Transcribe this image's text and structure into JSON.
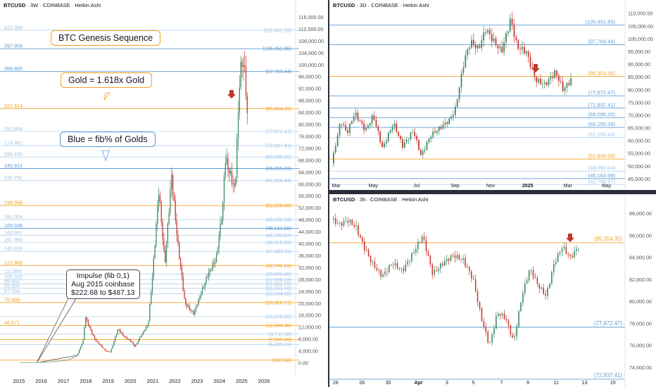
{
  "colors": {
    "orange": "#f5a020",
    "blue": "#5b9bd5",
    "light_blue": "#9cc2e6",
    "up": "#3d8a63",
    "down": "#c73a30",
    "arrow": "#c0392b",
    "axis_text": "#555555"
  },
  "left_panel": {
    "title_symbol": "BTCUSD",
    "title_rest": " · 3W · COINBASE · Heikin Ashi",
    "callout_genesis": "BTC Genesis Sequence",
    "callout_gold": "Gold = 1.618x Gold",
    "callout_blue": "Blue = fib% of Golds",
    "note_lines": [
      "Impulse (fib 0,1)",
      "Aug 2015 coinbase",
      "$222.68 to $487.13"
    ],
    "arrow_icon": "down-arrow-icon"
  },
  "top_right_panel": {
    "title_symbol": "BTCUSD",
    "title_rest": " · 3D · COINBASE · Heikin Ashi",
    "arrow_icon": "down-arrow-icon"
  },
  "bottom_right_panel": {
    "title_symbol": "BTCUSD",
    "title_rest": " · 3h · COINBASE · Heikin Ashi",
    "arrow_icon": "down-arrow-icon"
  },
  "chart_data": [
    {
      "type": "candlestick",
      "symbol": "BTCUSD",
      "timeframe": "3W",
      "exchange": "COINBASE",
      "style": "Heikin Ashi",
      "x_ticks": [
        "2015",
        "2016",
        "2017",
        "2018",
        "2019",
        "2020",
        "2021",
        "2022",
        "2023",
        "2024",
        "2025",
        "2026"
      ],
      "y_ticks": [
        "116,000.00",
        "112,000.00",
        "108,000.00",
        "104,000.00",
        "100,000.00",
        "96,000.00",
        "92,000.00",
        "88,000.00",
        "84,000.00",
        "80,000.00",
        "76,000.00",
        "72,000.00",
        "68,000.00",
        "64,000.00",
        "60,000.00",
        "56,000.00",
        "52,000.00",
        "48,000.00",
        "44,000.00",
        "40,000.00",
        "36,000.00",
        "32,000.00",
        "28,000.00",
        "24,000.00",
        "20,000.00",
        "16,000.00",
        "12,000.00",
        "8,000.00",
        "4,000.00",
        "0.00"
      ],
      "ylim": [
        0,
        118000
      ],
      "price_path": [
        [
          2015.0,
          230
        ],
        [
          2015.6,
          260
        ],
        [
          2016.2,
          420
        ],
        [
          2016.8,
          700
        ],
        [
          2017.2,
          1100
        ],
        [
          2017.6,
          2500
        ],
        [
          2017.9,
          8000
        ],
        [
          2017.97,
          16000
        ],
        [
          2018.1,
          13000
        ],
        [
          2018.4,
          8000
        ],
        [
          2018.9,
          4000
        ],
        [
          2019.1,
          3700
        ],
        [
          2019.45,
          11500
        ],
        [
          2019.7,
          9000
        ],
        [
          2020.0,
          7500
        ],
        [
          2020.2,
          5500
        ],
        [
          2020.5,
          9500
        ],
        [
          2020.8,
          13000
        ],
        [
          2021.0,
          30000
        ],
        [
          2021.28,
          58000
        ],
        [
          2021.55,
          33000
        ],
        [
          2021.85,
          63000
        ],
        [
          2022.1,
          42000
        ],
        [
          2022.45,
          20000
        ],
        [
          2022.85,
          16500
        ],
        [
          2023.1,
          22000
        ],
        [
          2023.5,
          30000
        ],
        [
          2023.85,
          35000
        ],
        [
          2024.15,
          52000
        ],
        [
          2024.25,
          69000
        ],
        [
          2024.7,
          58000
        ],
        [
          2024.92,
          97000
        ],
        [
          2025.05,
          102000
        ],
        [
          2025.17,
          95000
        ],
        [
          2025.25,
          83000
        ]
      ],
      "fib_levels": [
        {
          "left": "421.386",
          "right": "(111,661.25)",
          "value": 111661.25,
          "kind": "light"
        },
        {
          "left": "397.909",
          "right": "(105,451.85)",
          "value": 105451.85,
          "kind": "blue"
        },
        {
          "left": "368.865",
          "right": "(97,769.44)",
          "value": 97769.44,
          "kind": "blue"
        },
        {
          "left": "321.914",
          "right": "(85,354.35)",
          "value": 85354.35,
          "kind": "orange"
        },
        {
          "left": "292.866",
          "right": "(77,672.47)",
          "value": 77672.47,
          "kind": "light"
        },
        {
          "left": "274.961",
          "right": "(72,937.41)",
          "value": 72937.41,
          "kind": "light"
        },
        {
          "left": "260.436",
          "right": "(69,096.20)",
          "value": 69096.2,
          "kind": "light"
        },
        {
          "left": "245.912",
          "right": "(65,255.26)",
          "value": 65255.26,
          "kind": "blue"
        },
        {
          "left": "230.791",
          "right": "(61,256.44)",
          "value": 61256.44,
          "kind": "light"
        },
        {
          "left": "198.958",
          "right": "(52,838.06)",
          "value": 52838.06,
          "kind": "orange"
        },
        {
          "left": "181.004",
          "right": "(48,090.04)",
          "value": 48090.04,
          "kind": "light"
        },
        {
          "left": "169.938",
          "right": "(45,163.58)",
          "value": 45163.58,
          "kind": "blue"
        },
        {
          "left": "160.961",
          "right": "(42,789.57)",
          "value": 42789.57,
          "kind": "light"
        },
        {
          "left": "151.985",
          "right": "(40,415.83)",
          "value": 40415.83,
          "kind": "light"
        },
        {
          "left": "140.918",
          "right": "(37,489.11)",
          "value": 37489.11,
          "kind": "light"
        },
        {
          "left": "122.965",
          "right": "(32,741.15)",
          "value": 32741.15,
          "kind": "orange"
        },
        {
          "left": "111.869",
          "right": "(29,806.96)",
          "value": 29806.96,
          "kind": "light"
        },
        {
          "left": "105.029",
          "right": "(27,998.23)",
          "value": 27998.23,
          "kind": "light"
        },
        {
          "left": "99.482",
          "right": "(26,531.76)",
          "value": 26531.76,
          "kind": "light"
        },
        {
          "left": "93.933",
          "right": "(25,063.70)",
          "value": 25063.7,
          "kind": "light"
        },
        {
          "left": "87.094",
          "right": "(23,254.96)",
          "value": 23254.96,
          "kind": "light"
        },
        {
          "left": "75.998",
          "right": "(20,320.71)",
          "value": 20320.71,
          "kind": "orange"
        },
        {
          "left": "",
          "right": "(15,575.60)",
          "value": 15575.6,
          "kind": "light"
        },
        {
          "left": "46.971",
          "right": "(12,644.38)",
          "value": 12644.38,
          "kind": "orange"
        },
        {
          "left": "",
          "right": "(9,711.58)",
          "value": 9711.58,
          "kind": "light"
        },
        {
          "left": "",
          "right": "(7,900.06)",
          "value": 7900.06,
          "kind": "orange"
        },
        {
          "left": "",
          "right": "(6,289.19)",
          "value": 6289.19,
          "kind": "light"
        },
        {
          "left": "",
          "right": "(987.68)",
          "value": 987.68,
          "kind": "orange"
        }
      ]
    },
    {
      "type": "candlestick",
      "symbol": "BTCUSD",
      "timeframe": "3D",
      "exchange": "COINBASE",
      "style": "Heikin Ashi",
      "x_ticks": [
        "Mar",
        "May",
        "Jul",
        "Sep",
        "Nov",
        "2025",
        "Mar",
        "May"
      ],
      "y_ticks": [
        "110,000.00",
        "105,000.00",
        "100,000.00",
        "95,000.00",
        "90,000.00",
        "85,000.00",
        "80,000.00",
        "75,000.00",
        "70,000.00",
        "65,000.00",
        "60,000.00",
        "55,000.00",
        "50,000.00",
        "45,000.00"
      ],
      "ylim": [
        44000,
        112000
      ],
      "price_path": [
        [
          0.0,
          51000
        ],
        [
          0.06,
          68000
        ],
        [
          0.1,
          63000
        ],
        [
          0.15,
          71000
        ],
        [
          0.22,
          64000
        ],
        [
          0.27,
          70000
        ],
        [
          0.33,
          57000
        ],
        [
          0.4,
          67000
        ],
        [
          0.46,
          58000
        ],
        [
          0.53,
          64000
        ],
        [
          0.58,
          54000
        ],
        [
          0.64,
          62000
        ],
        [
          0.7,
          65000
        ],
        [
          0.76,
          68000
        ],
        [
          0.8,
          72000
        ],
        [
          0.86,
          92000
        ],
        [
          0.9,
          99000
        ],
        [
          0.95,
          96000
        ],
        [
          1.0,
          104000
        ],
        [
          1.04,
          100000
        ],
        [
          1.1,
          95000
        ],
        [
          1.16,
          108000
        ],
        [
          1.2,
          97000
        ],
        [
          1.26,
          95000
        ],
        [
          1.32,
          84000
        ],
        [
          1.38,
          82000
        ],
        [
          1.45,
          87000
        ],
        [
          1.5,
          80000
        ],
        [
          1.55,
          84000
        ]
      ],
      "x_domain": [
        0,
        1.9
      ],
      "fib_levels": [
        {
          "right": "(105,451.85)",
          "value": 105451.85,
          "kind": "blue"
        },
        {
          "right": "(97,769.44)",
          "value": 97769.44,
          "kind": "blue"
        },
        {
          "right": "(85,354.35)",
          "value": 85354.35,
          "kind": "orange"
        },
        {
          "right": "(77,672.47)",
          "value": 77672.47,
          "kind": "blue"
        },
        {
          "right": "(72,937.41)",
          "value": 72937.41,
          "kind": "blue"
        },
        {
          "right": "(69,096.20)",
          "value": 69096.2,
          "kind": "blue"
        },
        {
          "right": "(65,255.26)",
          "value": 65255.26,
          "kind": "blue"
        },
        {
          "right": "(61,256.44)",
          "value": 61256.44,
          "kind": "light"
        },
        {
          "right": "(52,838.06)",
          "value": 52838.06,
          "kind": "orange"
        },
        {
          "right": "(48,090.04)",
          "value": 48090.04,
          "kind": "light"
        },
        {
          "right": "(45,163.58)",
          "value": 45163.58,
          "kind": "blue"
        },
        {
          "right": "(42,789.57)",
          "value": 42789.57,
          "kind": "light"
        }
      ]
    },
    {
      "type": "candlestick",
      "symbol": "BTCUSD",
      "timeframe": "3h",
      "exchange": "COINBASE",
      "style": "Heikin Ashi",
      "x_ticks": [
        "26",
        "28",
        "30",
        "Apr",
        "3",
        "5",
        "7",
        "9",
        "11",
        "13",
        "15"
      ],
      "y_ticks": [
        "88,000.00",
        "86,000.00",
        "84,000.00",
        "82,000.00",
        "80,000.00",
        "78,000.00",
        "76,000.00",
        "74,000.00"
      ],
      "ylim": [
        73000,
        89000
      ],
      "price_path": [
        [
          0.0,
          87500
        ],
        [
          0.04,
          87000
        ],
        [
          0.08,
          87400
        ],
        [
          0.12,
          86800
        ],
        [
          0.16,
          85000
        ],
        [
          0.2,
          83500
        ],
        [
          0.25,
          82300
        ],
        [
          0.3,
          83500
        ],
        [
          0.35,
          82800
        ],
        [
          0.4,
          84300
        ],
        [
          0.45,
          86000
        ],
        [
          0.5,
          82500
        ],
        [
          0.55,
          83500
        ],
        [
          0.6,
          84200
        ],
        [
          0.65,
          83800
        ],
        [
          0.7,
          82000
        ],
        [
          0.74,
          78500
        ],
        [
          0.78,
          76000
        ],
        [
          0.82,
          79000
        ],
        [
          0.86,
          78500
        ],
        [
          0.9,
          76300
        ],
        [
          0.94,
          80500
        ],
        [
          0.98,
          83000
        ],
        [
          1.02,
          81500
        ],
        [
          1.06,
          80500
        ],
        [
          1.1,
          83500
        ],
        [
          1.14,
          85000
        ],
        [
          1.18,
          84000
        ],
        [
          1.22,
          85000
        ]
      ],
      "x_domain": [
        0,
        1.45
      ],
      "fib_levels": [
        {
          "right": "(85,354.35)",
          "value": 85354.35,
          "kind": "orange"
        },
        {
          "right": "(77,672.47)",
          "value": 77672.47,
          "kind": "blue"
        },
        {
          "right": "(72,937.41)",
          "value": 72937.41,
          "kind": "blue"
        }
      ]
    }
  ]
}
